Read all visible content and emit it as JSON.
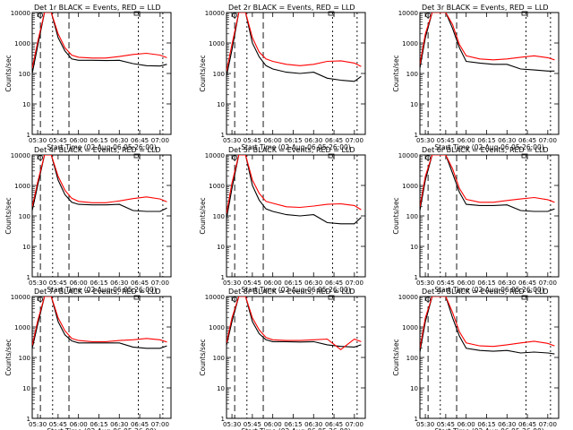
{
  "figure": {
    "xlabel": "Start Time (02-Aug-06 05:26:00)",
    "ylabel": "Counts/sec",
    "x_ticks": [
      "05:30",
      "05:45",
      "06:00",
      "06:15",
      "06:30",
      "06:45",
      "07:00"
    ],
    "y_ticks": [
      "1",
      "10",
      "100",
      "1000",
      "10000"
    ]
  },
  "colors": {
    "events": "#000000",
    "lld": "#ff0000",
    "background": "#ffffff"
  },
  "chart_data": [
    {
      "type": "line",
      "title": "Det 1r BLACK = Events, RED = LLD",
      "xlabel": "Start Time (02-Aug-06 05:26:00)",
      "ylabel": "Counts/sec",
      "yscale": "log",
      "ylim": [
        1,
        10000
      ],
      "x": [
        "05:26",
        "05:30",
        "05:35",
        "05:40",
        "05:45",
        "05:50",
        "05:55",
        "06:00",
        "06:10",
        "06:20",
        "06:30",
        "06:40",
        "06:50",
        "07:00",
        "07:05"
      ],
      "series": [
        {
          "name": "Events",
          "color": "#000000",
          "values": [
            100,
            800,
            10000,
            10000,
            1500,
            550,
            300,
            270,
            270,
            265,
            270,
            210,
            180,
            175,
            200
          ]
        },
        {
          "name": "LLD",
          "color": "#ff0000",
          "values": [
            150,
            1100,
            10000,
            10000,
            2000,
            700,
            400,
            340,
            320,
            320,
            360,
            420,
            460,
            400,
            330
          ]
        }
      ]
    },
    {
      "type": "line",
      "title": "Det 2r BLACK = Events, RED = LLD",
      "xlabel": "Start Time (02-Aug-06 05:26:00)",
      "ylabel": "Counts/sec",
      "yscale": "log",
      "ylim": [
        1,
        10000
      ],
      "x": [
        "05:26",
        "05:30",
        "05:35",
        "05:40",
        "05:45",
        "05:50",
        "05:55",
        "06:00",
        "06:10",
        "06:20",
        "06:30",
        "06:40",
        "06:50",
        "07:00",
        "07:05"
      ],
      "series": [
        {
          "name": "Events",
          "color": "#000000",
          "values": [
            80,
            600,
            10000,
            10000,
            1000,
            350,
            180,
            140,
            110,
            100,
            110,
            70,
            60,
            55,
            80
          ]
        },
        {
          "name": "LLD",
          "color": "#ff0000",
          "values": [
            120,
            900,
            10000,
            10000,
            1500,
            500,
            300,
            250,
            200,
            180,
            200,
            250,
            260,
            220,
            170
          ]
        }
      ]
    },
    {
      "type": "line",
      "title": "Det 3r BLACK = Events, RED = LLD",
      "xlabel": "Start Time (02-Aug-06 05:26:00)",
      "ylabel": "Counts/sec",
      "yscale": "log",
      "ylim": [
        1,
        10000
      ],
      "x": [
        "05:26",
        "05:30",
        "05:35",
        "05:40",
        "05:45",
        "05:50",
        "05:55",
        "06:00",
        "06:10",
        "06:20",
        "06:30",
        "06:40",
        "06:50",
        "07:00",
        "07:05"
      ],
      "series": [
        {
          "name": "Events",
          "color": "#000000",
          "values": [
            150,
            1500,
            10000,
            10000,
            10000,
            3000,
            700,
            250,
            220,
            200,
            200,
            140,
            130,
            120,
            120
          ]
        },
        {
          "name": "LLD",
          "color": "#ff0000",
          "values": [
            200,
            2000,
            10000,
            10000,
            10000,
            4000,
            900,
            380,
            300,
            280,
            300,
            340,
            380,
            330,
            280
          ]
        }
      ]
    },
    {
      "type": "line",
      "title": "Det 4r BLACK = Events, RED = LLD",
      "xlabel": "Start Time (02-Aug-06 05:26:00)",
      "ylabel": "Counts/sec",
      "yscale": "log",
      "ylim": [
        1,
        10000
      ],
      "x": [
        "05:26",
        "05:30",
        "05:35",
        "05:40",
        "05:45",
        "05:50",
        "05:55",
        "06:00",
        "06:10",
        "06:20",
        "06:30",
        "06:40",
        "06:50",
        "07:00",
        "07:05"
      ],
      "series": [
        {
          "name": "Events",
          "color": "#000000",
          "values": [
            150,
            1000,
            10000,
            10000,
            1500,
            500,
            280,
            240,
            230,
            230,
            240,
            150,
            140,
            140,
            180
          ]
        },
        {
          "name": "LLD",
          "color": "#ff0000",
          "values": [
            200,
            1300,
            10000,
            10000,
            2000,
            700,
            380,
            300,
            270,
            270,
            310,
            370,
            420,
            360,
            290
          ]
        }
      ]
    },
    {
      "type": "line",
      "title": "Det 5r BLACK = Events, RED = LLD",
      "xlabel": "Start Time (02-Aug-06 05:26:00)",
      "ylabel": "Counts/sec",
      "yscale": "log",
      "ylim": [
        1,
        10000
      ],
      "x": [
        "05:26",
        "05:30",
        "05:35",
        "05:40",
        "05:45",
        "05:50",
        "05:55",
        "06:00",
        "06:10",
        "06:20",
        "06:30",
        "06:40",
        "06:50",
        "07:00",
        "07:05"
      ],
      "series": [
        {
          "name": "Events",
          "color": "#000000",
          "values": [
            80,
            800,
            10000,
            10000,
            1000,
            330,
            170,
            140,
            110,
            100,
            110,
            60,
            55,
            55,
            90
          ]
        },
        {
          "name": "LLD",
          "color": "#ff0000",
          "values": [
            120,
            1200,
            10000,
            10000,
            1500,
            550,
            300,
            260,
            200,
            190,
            210,
            240,
            250,
            220,
            160
          ]
        }
      ]
    },
    {
      "type": "line",
      "title": "Det 6r BLACK = Events, RED = LLD",
      "xlabel": "Start Time (02-Aug-06 05:26:00)",
      "ylabel": "Counts/sec",
      "yscale": "log",
      "ylim": [
        1,
        10000
      ],
      "x": [
        "05:26",
        "05:30",
        "05:35",
        "05:40",
        "05:45",
        "05:50",
        "05:55",
        "06:00",
        "06:10",
        "06:20",
        "06:30",
        "06:40",
        "06:50",
        "07:00",
        "07:05"
      ],
      "series": [
        {
          "name": "Events",
          "color": "#000000",
          "values": [
            150,
            1500,
            10000,
            10000,
            10000,
            2500,
            600,
            240,
            220,
            220,
            230,
            150,
            140,
            140,
            170
          ]
        },
        {
          "name": "LLD",
          "color": "#ff0000",
          "values": [
            200,
            2000,
            10000,
            10000,
            10000,
            3500,
            800,
            350,
            280,
            280,
            320,
            360,
            400,
            340,
            280
          ]
        }
      ]
    },
    {
      "type": "line",
      "title": "Det 7r BLACK = Events, RED = LLD",
      "xlabel": "Start Time (02-Aug-06 05:26:00)",
      "ylabel": "Counts/sec",
      "yscale": "log",
      "ylim": [
        1,
        10000
      ],
      "x": [
        "05:26",
        "05:30",
        "05:35",
        "05:40",
        "05:45",
        "05:50",
        "05:55",
        "06:00",
        "06:10",
        "06:20",
        "06:30",
        "06:40",
        "06:50",
        "07:00",
        "07:05"
      ],
      "series": [
        {
          "name": "Events",
          "color": "#000000",
          "values": [
            200,
            1200,
            10000,
            10000,
            1500,
            550,
            350,
            300,
            300,
            300,
            300,
            220,
            200,
            200,
            240
          ]
        },
        {
          "name": "LLD",
          "color": "#ff0000",
          "values": [
            250,
            1600,
            10000,
            10000,
            2000,
            750,
            420,
            360,
            330,
            330,
            360,
            380,
            420,
            380,
            320
          ]
        }
      ]
    },
    {
      "type": "line",
      "title": "Det 8r BLACK = Events, RED = LLD",
      "xlabel": "Start Time (02-Aug-06 05:26:00)",
      "ylabel": "Counts/sec",
      "yscale": "log",
      "ylim": [
        1,
        10000
      ],
      "x": [
        "05:26",
        "05:30",
        "05:35",
        "05:40",
        "05:45",
        "05:50",
        "05:55",
        "06:00",
        "06:10",
        "06:20",
        "06:30",
        "06:40",
        "06:50",
        "07:00",
        "07:05"
      ],
      "series": [
        {
          "name": "Events",
          "color": "#000000",
          "values": [
            250,
            1500,
            10000,
            10000,
            1500,
            600,
            380,
            330,
            330,
            320,
            330,
            260,
            230,
            220,
            260
          ]
        },
        {
          "name": "LLD",
          "color": "#ff0000",
          "values": [
            300,
            2000,
            10000,
            10000,
            2000,
            800,
            450,
            380,
            360,
            360,
            380,
            400,
            180,
            400,
            330
          ]
        }
      ]
    },
    {
      "type": "line",
      "title": "Det 9r BLACK = Events, RED = LLD",
      "xlabel": "Start Time (02-Aug-06 05:26:00)",
      "ylabel": "Counts/sec",
      "yscale": "log",
      "ylim": [
        1,
        10000
      ],
      "x": [
        "05:26",
        "05:30",
        "05:35",
        "05:40",
        "05:45",
        "05:50",
        "05:55",
        "06:00",
        "06:10",
        "06:20",
        "06:30",
        "06:40",
        "06:50",
        "07:00",
        "07:05"
      ],
      "series": [
        {
          "name": "Events",
          "color": "#000000",
          "values": [
            150,
            1500,
            10000,
            10000,
            10000,
            2000,
            500,
            200,
            170,
            160,
            170,
            140,
            150,
            140,
            130
          ]
        },
        {
          "name": "LLD",
          "color": "#ff0000",
          "values": [
            200,
            2000,
            10000,
            10000,
            10000,
            3000,
            700,
            300,
            240,
            230,
            260,
            300,
            340,
            290,
            240
          ]
        }
      ]
    }
  ]
}
